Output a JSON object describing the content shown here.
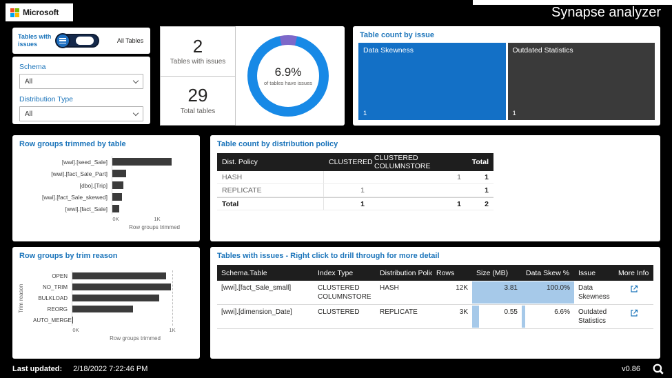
{
  "theme": {
    "background": "#000000",
    "card_bg": "#FFFFFF",
    "accent_blue": "#1B74BA",
    "bar_color": "#3B3B3B",
    "data_bar_fill": "#A6C9E9",
    "table_header_bg": "#1E1E1E"
  },
  "header": {
    "logo_text": "Microsoft",
    "title": "Synapse analyzer",
    "logo_colors": {
      "tl": "#F25022",
      "tr": "#7FBA00",
      "bl": "#00A4EF",
      "br": "#FFB900"
    }
  },
  "filters": {
    "toggle_left_label": "Tables with issues",
    "toggle_right_label": "All Tables",
    "schema": {
      "label": "Schema",
      "value": "All"
    },
    "distribution_type": {
      "label": "Distribution Type",
      "value": "All"
    }
  },
  "kpi": {
    "issues": {
      "value": "2",
      "label": "Tables with issues"
    },
    "total": {
      "value": "29",
      "label": "Total tables"
    }
  },
  "donut": {
    "pct_label": "6.9%",
    "caption": "of tables have issues",
    "issue_pct": 6.9,
    "start_deg": -12,
    "colors": {
      "issues": "#7D68C9",
      "ok": "#1789E6"
    }
  },
  "treemap": {
    "title": "Table count by issue",
    "items": [
      {
        "label": "Data Skewness",
        "count": "1",
        "color": "#1370C6"
      },
      {
        "label": "Outdated Statistics",
        "count": "1",
        "color": "#3A3A3A"
      }
    ]
  },
  "chart_data": [
    {
      "type": "bar",
      "title": "Row groups trimmed by table",
      "categories": [
        "[wwi].[seed_Sale]",
        "[wwi].[fact_Sale_Part]",
        "[dbo].[Trip]",
        "[wwi].[fact_Sale_skewed]",
        "[wwi].[fact_Sale]"
      ],
      "values_k": [
        1.43,
        0.33,
        0.27,
        0.23,
        0.17
      ],
      "x_ticks": [
        "0K",
        "1K"
      ],
      "x_label": "Row groups trimmed"
    },
    {
      "type": "bar",
      "title": "Row groups by trim reason",
      "categories": [
        "OPEN",
        "NO_TRIM",
        "BULKLOAD",
        "REORG",
        "AUTO_MERGE"
      ],
      "values_k": [
        0.97,
        1.02,
        0.9,
        0.63,
        0.01
      ],
      "x_ticks": [
        "0K",
        "1K"
      ],
      "x_label": "Row groups trimmed",
      "y_label": "Trim reason"
    }
  ],
  "matrix": {
    "title": "Table count by distribution policy",
    "columns": [
      "Dist. Policy",
      "CLUSTERED",
      "CLUSTERED COLUMNSTORE",
      "Total"
    ],
    "rows": [
      {
        "policy": "HASH",
        "clustered": "",
        "columnstore": "1",
        "total": "1"
      },
      {
        "policy": "REPLICATE",
        "clustered": "1",
        "columnstore": "",
        "total": "1"
      },
      {
        "policy": "Total",
        "clustered": "1",
        "columnstore": "1",
        "total": "2"
      }
    ]
  },
  "issues": {
    "title": "Tables with issues - Right click to drill through for more detail",
    "columns": [
      "Schema.Table",
      "Index Type",
      "Distribution Policy",
      "Rows",
      "Size (MB)",
      "Data Skew %",
      "Issue",
      "More Info"
    ],
    "rows": [
      {
        "table": "[wwi].[fact_Sale_small]",
        "index_type": "CLUSTERED COLUMNSTORE",
        "policy": "HASH",
        "rows": "12K",
        "size": "3.81",
        "size_pct": 100,
        "skew": "100.0%",
        "skew_pct": 100,
        "issue": "Data Skewness"
      },
      {
        "table": "[wwi].[dimension_Date]",
        "index_type": "CLUSTERED",
        "policy": "REPLICATE",
        "rows": "3K",
        "size": "0.55",
        "size_pct": 14,
        "skew": "6.6%",
        "skew_pct": 7,
        "issue": "Outdated Statistics"
      }
    ]
  },
  "footer": {
    "label": "Last updated:",
    "value": "2/18/2022 7:22:46 PM",
    "version": "v0.86"
  }
}
